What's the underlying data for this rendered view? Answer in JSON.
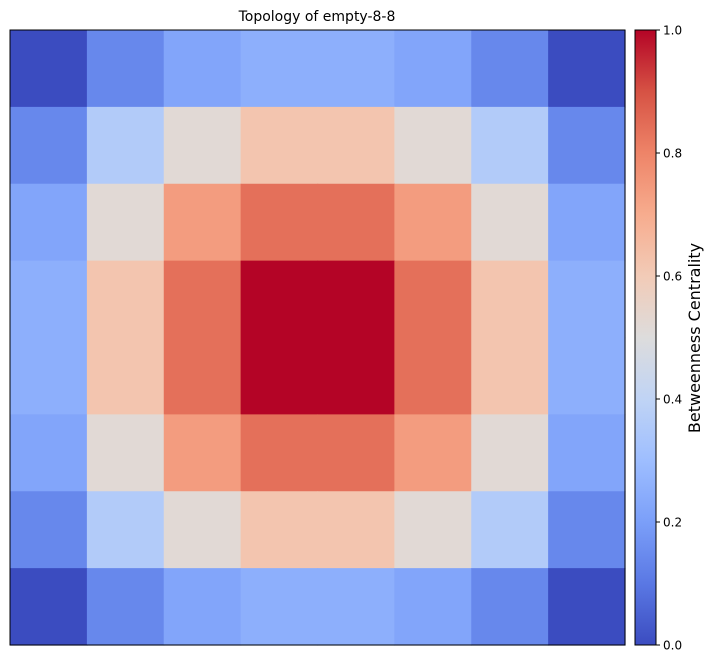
{
  "chart_data": {
    "type": "heatmap",
    "title": "Topology of empty-8-8",
    "grid_rows": 8,
    "grid_cols": 8,
    "values": [
      [
        0.0,
        0.14,
        0.22,
        0.25,
        0.25,
        0.22,
        0.14,
        0.0
      ],
      [
        0.14,
        0.36,
        0.52,
        0.62,
        0.62,
        0.52,
        0.36,
        0.14
      ],
      [
        0.22,
        0.52,
        0.74,
        0.84,
        0.84,
        0.74,
        0.52,
        0.22
      ],
      [
        0.25,
        0.62,
        0.84,
        1.0,
        1.0,
        0.84,
        0.62,
        0.25
      ],
      [
        0.25,
        0.62,
        0.84,
        1.0,
        1.0,
        0.84,
        0.62,
        0.25
      ],
      [
        0.22,
        0.52,
        0.74,
        0.84,
        0.84,
        0.74,
        0.52,
        0.22
      ],
      [
        0.14,
        0.36,
        0.52,
        0.62,
        0.62,
        0.52,
        0.36,
        0.14
      ],
      [
        0.0,
        0.14,
        0.22,
        0.25,
        0.25,
        0.22,
        0.14,
        0.0
      ]
    ],
    "colormap": "coolwarm",
    "vmin": 0.0,
    "vmax": 1.0,
    "colorbar": {
      "label": "Betweenness Centrality",
      "ticks": [
        0.0,
        0.2,
        0.4,
        0.6,
        0.8,
        1.0
      ],
      "tick_labels": [
        "0.0",
        "0.2",
        "0.4",
        "0.6",
        "0.8",
        "1.0"
      ]
    },
    "xlabel": "",
    "ylabel": "",
    "axis_ticks_visible": false,
    "grid": false
  },
  "colors": {
    "coolwarm_stops": [
      [
        "0.0",
        "#3b4cc0"
      ],
      [
        "0.1",
        "#5a78e4"
      ],
      [
        "0.2",
        "#7b9ff9"
      ],
      [
        "0.3",
        "#9ebeff"
      ],
      [
        "0.4",
        "#c0d4f5"
      ],
      [
        "0.5",
        "#dddcdc"
      ],
      [
        "0.6",
        "#f2cbb7"
      ],
      [
        "0.7",
        "#f7ac8e"
      ],
      [
        "0.8",
        "#ee8468"
      ],
      [
        "0.9",
        "#d65244"
      ],
      [
        "1.0",
        "#b40426"
      ]
    ],
    "frame": "#000000"
  }
}
